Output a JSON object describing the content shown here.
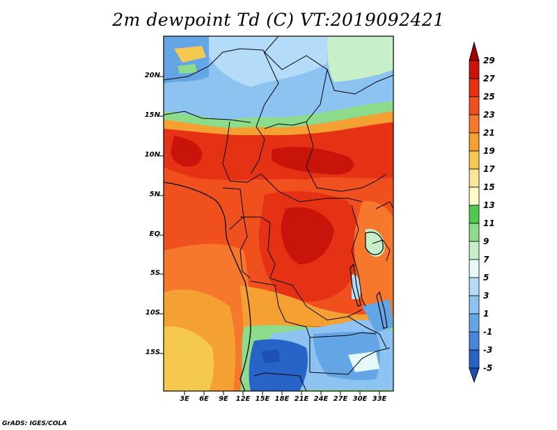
{
  "title": "2m dewpoint Td (C) VT:2019092421",
  "credit": "GrADS: IGES/COLA",
  "map": {
    "lat_labels": [
      "20N",
      "15N",
      "10N",
      "5N",
      "EQ",
      "5S",
      "10S",
      "15S"
    ],
    "lon_labels": [
      "3E",
      "6E",
      "9E",
      "12E",
      "15E",
      "18E",
      "21E",
      "24E",
      "27E",
      "30E",
      "33E"
    ]
  },
  "colorbar": {
    "labels": [
      "29",
      "27",
      "25",
      "23",
      "21",
      "19",
      "17",
      "15",
      "13",
      "11",
      "9",
      "7",
      "5",
      "3",
      "1",
      "-1",
      "-3",
      "-5"
    ],
    "colors": [
      "#a50000",
      "#c8140a",
      "#e63214",
      "#f0501e",
      "#f5782d",
      "#f5a032",
      "#f5c850",
      "#fae696",
      "#fffac8",
      "#50c850",
      "#8cdc8c",
      "#c8f0c8",
      "#e6f8f8",
      "#b4dcf8",
      "#8cc3f0",
      "#64a5e6",
      "#4687dc",
      "#2864c8",
      "#1e50b4"
    ]
  }
}
